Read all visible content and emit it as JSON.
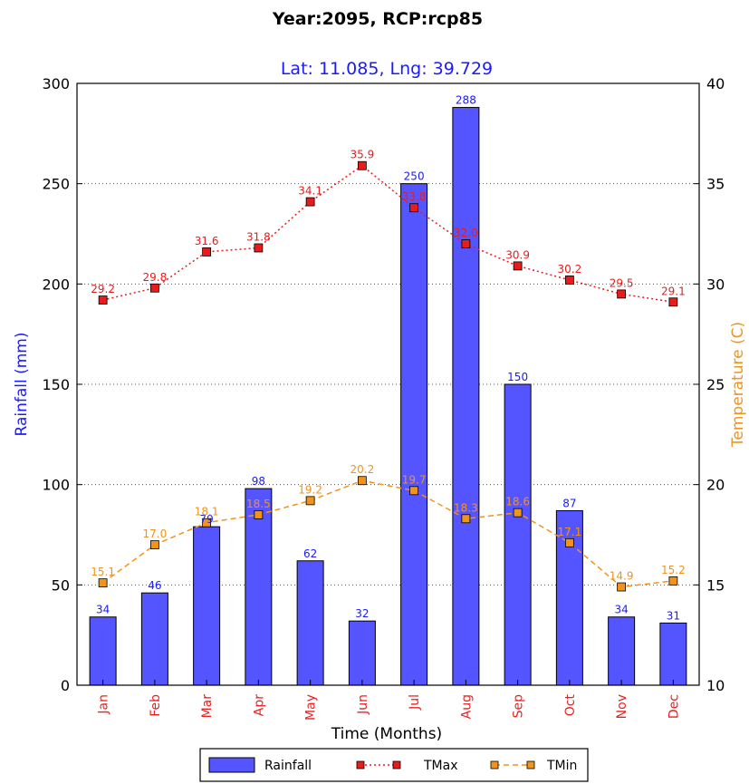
{
  "chart_data": {
    "type": "bar",
    "title": "Year:2095, RCP:rcp85",
    "subtitle": "Lat: 11.085, Lng: 39.729",
    "xlabel": "Time (Months)",
    "ylabel": "Rainfall (mm)",
    "y2label": "Temperature (C)",
    "categories": [
      "Jan",
      "Feb",
      "Mar",
      "Apr",
      "May",
      "Jun",
      "Jul",
      "Aug",
      "Sep",
      "Oct",
      "Nov",
      "Dec"
    ],
    "ylim": [
      0,
      300
    ],
    "y2lim": [
      10,
      40
    ],
    "yticks": [
      "0",
      "50",
      "100",
      "150",
      "200",
      "250",
      "300"
    ],
    "y2ticks": [
      "10",
      "15",
      "20",
      "25",
      "30",
      "35",
      "40"
    ],
    "grid": "horizontal dotted",
    "legend_position": "bottom",
    "series": [
      {
        "name": "Rainfall",
        "type": "bar",
        "axis": "left",
        "color": "#5555ff",
        "label_color": "#1a1aff",
        "values": [
          34,
          46,
          79,
          98,
          62,
          32,
          250,
          288,
          150,
          87,
          34,
          31
        ],
        "labels": [
          "34",
          "46",
          "79",
          "98",
          "62",
          "32",
          "250",
          "288",
          "150",
          "87",
          "34",
          "31"
        ]
      },
      {
        "name": "TMax",
        "type": "line",
        "axis": "right",
        "color": "#e81c1c",
        "style": "dotted",
        "marker": "square",
        "values": [
          29.2,
          29.8,
          31.6,
          31.8,
          34.1,
          35.9,
          33.8,
          32.0,
          30.9,
          30.2,
          29.5,
          29.1
        ],
        "labels": [
          "29.2",
          "29.8",
          "31.6",
          "31.8",
          "34.1",
          "35.9",
          "33.8",
          "32.0",
          "30.9",
          "30.2",
          "29.5",
          "29.1"
        ]
      },
      {
        "name": "TMin",
        "type": "line",
        "axis": "right",
        "color": "#f0941c",
        "style": "dashed",
        "marker": "square",
        "values": [
          15.1,
          17.0,
          18.1,
          18.5,
          19.2,
          20.2,
          19.7,
          18.3,
          18.6,
          17.1,
          14.9,
          15.2
        ],
        "labels": [
          "15.1",
          "17.0",
          "18.1",
          "18.5",
          "19.2",
          "20.2",
          "19.7",
          "18.3",
          "18.6",
          "17.1",
          "14.9",
          "15.2"
        ]
      }
    ]
  },
  "colors": {
    "left_axis_label": "#1a1aff",
    "right_axis_label": "#f0941c",
    "x_tick_labels": "#e82020"
  }
}
